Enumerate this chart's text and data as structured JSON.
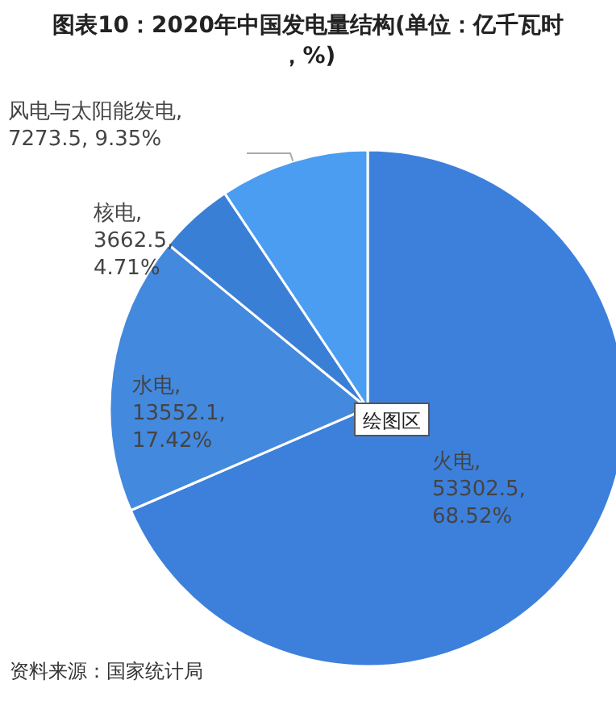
{
  "chart_data": {
    "type": "pie",
    "title": "图表10：2020年中国发电量结构(单位：亿千瓦时，%)",
    "categories": [
      "火电",
      "水电",
      "核电",
      "风电与太阳能发电"
    ],
    "values": [
      53302.5,
      13552.1,
      3662.5,
      7273.5
    ],
    "value_labels": [
      ", 53302.5, 68.52%",
      ", 13552.1, 17.42%",
      ", 3662.5, 4.71%",
      ", 7273.5, 9.35%"
    ],
    "colors": [
      "#3d80dc",
      "#4389de",
      "#3a7fd6",
      "#4a9df0"
    ],
    "legend": false,
    "annotations": [
      "资料来源：国家统计局",
      "绘图区"
    ]
  }
}
